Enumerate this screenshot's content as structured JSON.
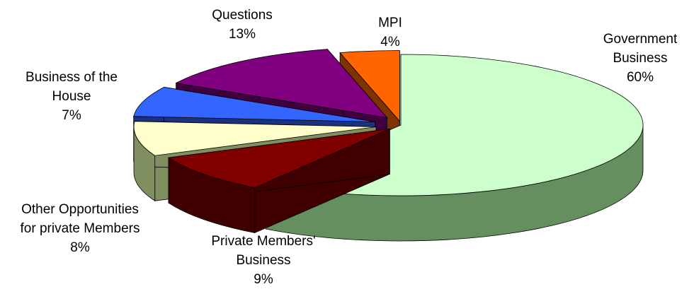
{
  "chart_data": {
    "type": "pie",
    "style": "3d-exploded",
    "unit": "%",
    "slices": [
      {
        "label": [
          "Government",
          "Business"
        ],
        "value": 60,
        "value_label": "60%",
        "color": "#CCFFCC"
      },
      {
        "label": [
          "Private Members'",
          "Business"
        ],
        "value": 9,
        "value_label": "9%",
        "color": "#800000"
      },
      {
        "label": [
          "Other Opportunities",
          "for private Members"
        ],
        "value": 8,
        "value_label": "8%",
        "color": "#FFFFCC"
      },
      {
        "label": [
          "Business of the",
          "House"
        ],
        "value": 7,
        "value_label": "7%",
        "color": "#3366FF"
      },
      {
        "label": [
          "Questions"
        ],
        "value": 13,
        "value_label": "13%",
        "color": "#800080"
      },
      {
        "label": [
          "MPI"
        ],
        "value": 4,
        "value_label": "4%",
        "color": "#FF6600"
      }
    ]
  }
}
